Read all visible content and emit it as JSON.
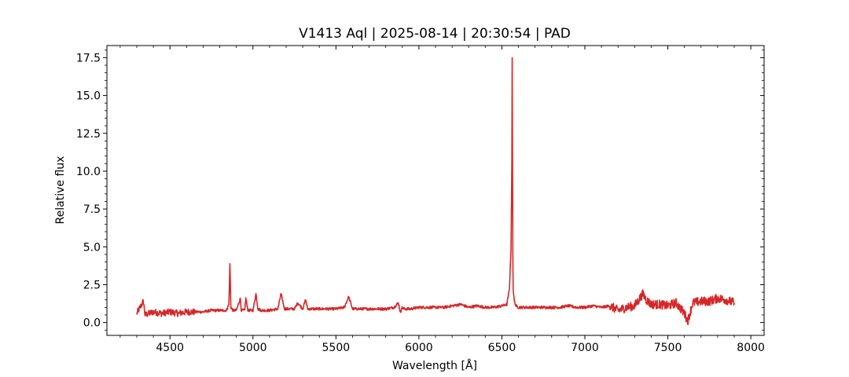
{
  "chart_data": {
    "type": "line",
    "title": "V1413 Aql | 2025-08-14 | 20:30:54 | PAD",
    "xlabel": "Wavelength [Å]",
    "ylabel": "Relative flux",
    "xlim": [
      4120,
      8080
    ],
    "ylim": [
      -0.85,
      18.3
    ],
    "xticks": [
      4500,
      5000,
      5500,
      6000,
      6500,
      7000,
      7500,
      8000
    ],
    "yticks": [
      0.0,
      2.5,
      5.0,
      7.5,
      10.0,
      12.5,
      15.0,
      17.5
    ],
    "xtick_labels": [
      "4500",
      "5000",
      "5500",
      "6000",
      "6500",
      "7000",
      "7500",
      "8000"
    ],
    "ytick_labels": [
      "0.0",
      "2.5",
      "5.0",
      "7.5",
      "10.0",
      "12.5",
      "15.0",
      "17.5"
    ],
    "grid": false,
    "line_color": "#d62728",
    "series": [
      {
        "x": [
          4300,
          4340,
          4350,
          4400,
          4450,
          4500,
          4550,
          4600,
          4650,
          4700,
          4750,
          4800,
          4840,
          4855,
          4861,
          4867,
          4880,
          4900,
          4924,
          4930,
          4950,
          4957,
          4970,
          5000,
          5018,
          5030,
          5050,
          5100,
          5150,
          5169,
          5190,
          5200,
          5250,
          5270,
          5300,
          5317,
          5330,
          5350,
          5400,
          5450,
          5500,
          5550,
          5577,
          5600,
          5650,
          5700,
          5750,
          5800,
          5850,
          5876,
          5890,
          5895,
          5910,
          5950,
          6000,
          6050,
          6100,
          6150,
          6200,
          6250,
          6300,
          6350,
          6400,
          6450,
          6500,
          6530,
          6545,
          6555,
          6560,
          6562,
          6564,
          6566,
          6568,
          6575,
          6585,
          6600,
          6650,
          6700,
          6750,
          6800,
          6850,
          6900,
          6950,
          7000,
          7050,
          7100,
          7150,
          7200,
          7250,
          7300,
          7350,
          7370,
          7400,
          7450,
          7500,
          7550,
          7600,
          7620,
          7650,
          7700,
          7750,
          7800,
          7850,
          7900
        ],
        "y": [
          0.6,
          1.4,
          0.5,
          0.7,
          0.6,
          0.7,
          0.6,
          0.7,
          0.7,
          0.7,
          0.8,
          0.8,
          0.8,
          1.2,
          3.9,
          1.0,
          0.8,
          0.8,
          1.6,
          0.8,
          0.8,
          1.6,
          0.8,
          0.8,
          1.9,
          0.9,
          0.8,
          0.8,
          0.9,
          1.9,
          0.9,
          0.9,
          0.9,
          1.3,
          0.9,
          1.5,
          0.9,
          0.9,
          0.9,
          0.9,
          0.9,
          1.0,
          1.7,
          0.9,
          0.9,
          0.9,
          0.9,
          0.9,
          1.0,
          1.3,
          0.6,
          1.0,
          0.9,
          0.9,
          1.0,
          1.0,
          1.0,
          1.0,
          1.1,
          1.2,
          1.0,
          1.1,
          1.0,
          1.0,
          1.1,
          1.2,
          2.2,
          4.8,
          10.5,
          17.5,
          11.0,
          4.5,
          2.2,
          1.4,
          1.1,
          1.0,
          1.0,
          1.0,
          1.0,
          1.0,
          1.0,
          1.1,
          1.0,
          1.0,
          1.1,
          1.0,
          1.1,
          0.8,
          1.0,
          1.1,
          1.9,
          1.5,
          1.2,
          1.2,
          1.1,
          1.3,
          0.6,
          0.1,
          1.3,
          1.4,
          1.4,
          1.6,
          1.5,
          1.3
        ]
      }
    ]
  }
}
